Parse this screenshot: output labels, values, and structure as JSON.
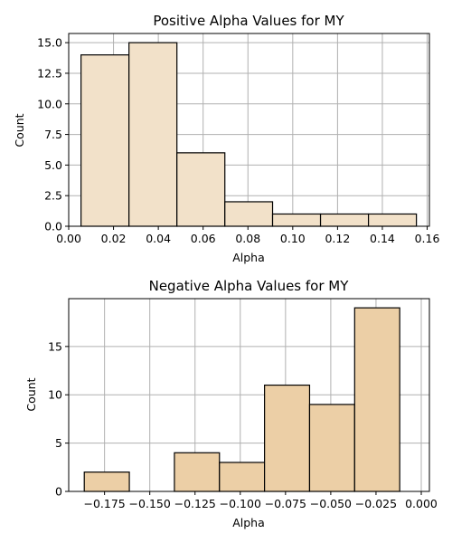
{
  "chart_data": [
    {
      "type": "histogram",
      "title": "Positive Alpha Values for MY",
      "xlabel": "Alpha",
      "ylabel": "Count",
      "bar_color": "#f2e1c9",
      "edge_color": "#000000",
      "grid": true,
      "xlim": [
        0.0,
        0.161
      ],
      "ylim": [
        0,
        15.75
      ],
      "xticks": [
        0.0,
        0.02,
        0.04,
        0.06,
        0.08,
        0.1,
        0.12,
        0.14,
        0.16
      ],
      "xtick_labels": [
        "0.00",
        "0.02",
        "0.04",
        "0.06",
        "0.08",
        "0.10",
        "0.12",
        "0.14",
        "0.16"
      ],
      "yticks": [
        0.0,
        2.5,
        5.0,
        7.5,
        10.0,
        12.5,
        15.0
      ],
      "ytick_labels": [
        "0.0",
        "2.5",
        "5.0",
        "7.5",
        "10.0",
        "12.5",
        "15.0"
      ],
      "bins": [
        {
          "x0": 0.0055,
          "x1": 0.0269,
          "count": 14
        },
        {
          "x0": 0.0269,
          "x1": 0.0483,
          "count": 15
        },
        {
          "x0": 0.0483,
          "x1": 0.0697,
          "count": 6
        },
        {
          "x0": 0.0697,
          "x1": 0.091,
          "count": 2
        },
        {
          "x0": 0.091,
          "x1": 0.1124,
          "count": 1
        },
        {
          "x0": 0.1124,
          "x1": 0.1338,
          "count": 1
        },
        {
          "x0": 0.1338,
          "x1": 0.1552,
          "count": 1
        }
      ]
    },
    {
      "type": "histogram",
      "title": "Negative Alpha Values for MY",
      "xlabel": "Alpha",
      "ylabel": "Count",
      "bar_color": "#eccfa6",
      "edge_color": "#000000",
      "grid": true,
      "xlim": [
        -0.1948,
        0.0045
      ],
      "ylim": [
        0,
        19.95
      ],
      "xticks": [
        -0.175,
        -0.15,
        -0.125,
        -0.1,
        -0.075,
        -0.05,
        -0.025,
        0.0
      ],
      "xtick_labels": [
        "−0.175",
        "−0.150",
        "−0.125",
        "−0.100",
        "−0.075",
        "−0.050",
        "−0.025",
        "0.000"
      ],
      "yticks": [
        0,
        5,
        10,
        15
      ],
      "ytick_labels": [
        "0",
        "5",
        "10",
        "15"
      ],
      "bins": [
        {
          "x0": -0.1862,
          "x1": -0.1613,
          "count": 2
        },
        {
          "x0": -0.1613,
          "x1": -0.1364,
          "count": 0
        },
        {
          "x0": -0.1364,
          "x1": -0.1115,
          "count": 4
        },
        {
          "x0": -0.1115,
          "x1": -0.0866,
          "count": 3
        },
        {
          "x0": -0.0866,
          "x1": -0.0617,
          "count": 11
        },
        {
          "x0": -0.0617,
          "x1": -0.0368,
          "count": 9
        },
        {
          "x0": -0.0368,
          "x1": -0.0119,
          "count": 19
        }
      ]
    }
  ]
}
